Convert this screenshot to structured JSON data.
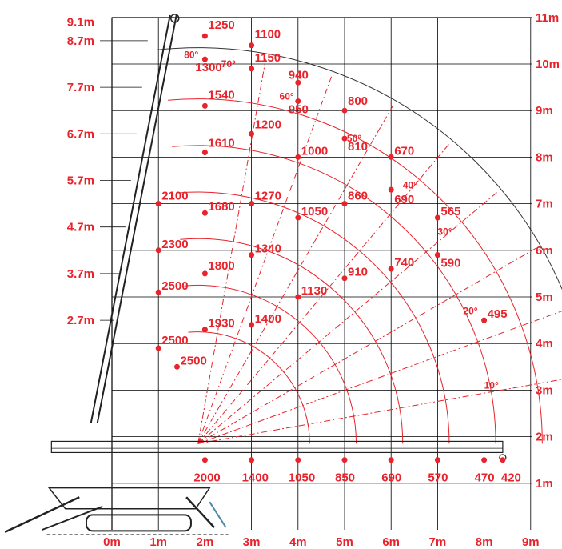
{
  "colors": {
    "accent": "#e8232b",
    "grid": "#000000",
    "crane": "#222222"
  },
  "x_axis": {
    "labels": [
      "0m",
      "1m",
      "2m",
      "3m",
      "4m",
      "5m",
      "6m",
      "7m",
      "8m",
      "9m"
    ]
  },
  "y_axis": {
    "labels": [
      "1m",
      "2m",
      "3m",
      "4m",
      "5m",
      "6m",
      "7m",
      "8m",
      "9m",
      "10m",
      "11m"
    ]
  },
  "boom_lengths": [
    "2.7m",
    "3.7m",
    "4.7m",
    "5.7m",
    "6.7m",
    "7.7m",
    "8.7m",
    "9.1m"
  ],
  "angles": [
    "80°",
    "70°",
    "60°",
    "50°",
    "40°",
    "30°",
    "20°",
    "10°"
  ],
  "capacity_labels": [
    "1250",
    "1100",
    "1300",
    "1150",
    "940",
    "950",
    "800",
    "1540",
    "1200",
    "810",
    "1610",
    "1000",
    "670",
    "2100",
    "1270",
    "860",
    "690",
    "1680",
    "1050",
    "565",
    "2300",
    "1340",
    "30",
    "590",
    "1800",
    "910",
    "740",
    "2500",
    "1130",
    "1400",
    "495",
    "1930",
    "2500",
    "2500",
    "2000",
    "1400",
    "1050",
    "850",
    "690",
    "570",
    "470",
    "420"
  ]
}
